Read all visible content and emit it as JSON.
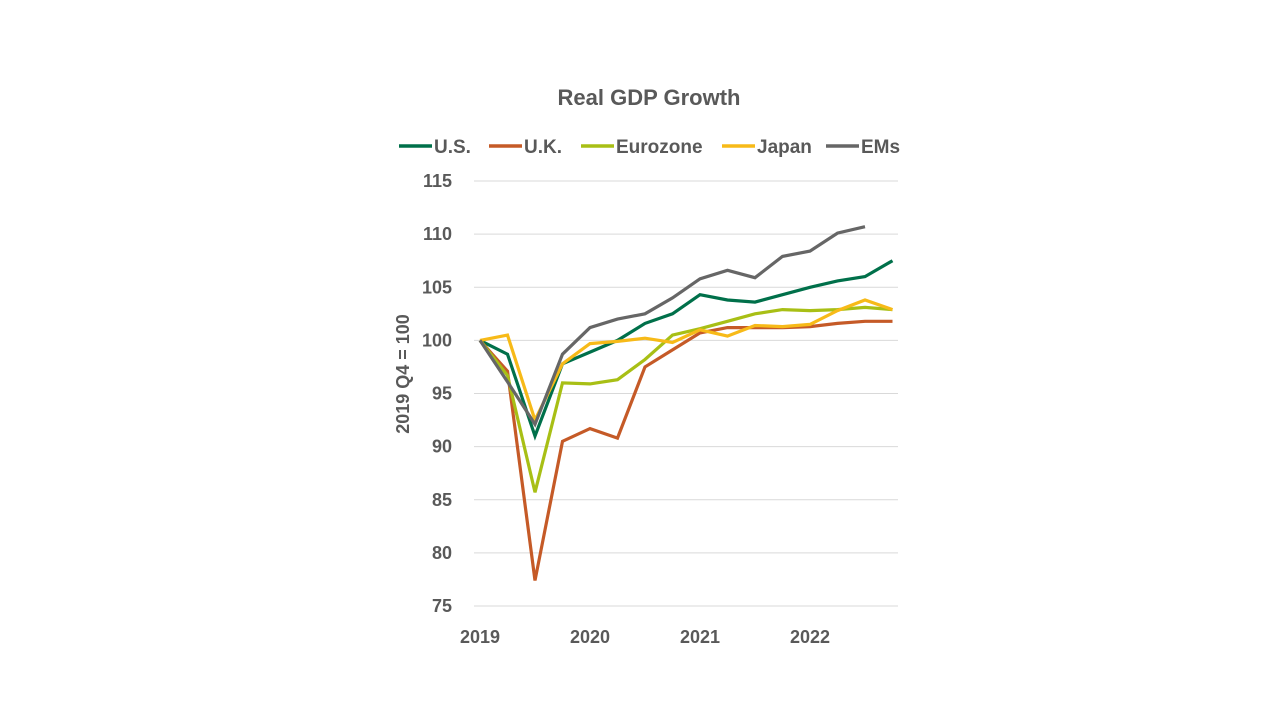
{
  "chart_data": {
    "type": "line",
    "title": "Real GDP Growth",
    "xlabel": "",
    "ylabel": "2019 Q4 = 100",
    "ylim": [
      75,
      115
    ],
    "yticks": [
      75,
      80,
      85,
      90,
      95,
      100,
      105,
      110,
      115
    ],
    "ytick_labels": [
      "75",
      "80",
      "85",
      "90",
      "95",
      "100",
      "105",
      "110",
      "115"
    ],
    "xtick_labels": [
      "2019",
      "2020",
      "2021",
      "2022"
    ],
    "xtick_positions": [
      0,
      4,
      8,
      12
    ],
    "x_count": 16,
    "grid": true,
    "legend_position": "top",
    "series": [
      {
        "name": "U.S.",
        "color": "#00704A",
        "values": [
          100,
          98.7,
          91.0,
          97.8,
          98.9,
          100.0,
          101.6,
          102.5,
          104.3,
          103.8,
          103.6,
          104.3,
          105.0,
          105.6,
          106.0,
          107.5
        ]
      },
      {
        "name": "U.K.",
        "color": "#C55A27",
        "values": [
          100,
          97.1,
          77.4,
          90.5,
          91.7,
          90.8,
          97.5,
          99.1,
          100.7,
          101.2,
          101.2,
          101.2,
          101.3,
          101.6,
          101.8,
          101.8
        ]
      },
      {
        "name": "Eurozone",
        "color": "#A8BF15",
        "values": [
          100,
          96.7,
          85.7,
          96.0,
          95.9,
          96.3,
          98.2,
          100.5,
          101.1,
          101.8,
          102.5,
          102.9,
          102.8,
          102.9,
          103.1,
          102.9
        ]
      },
      {
        "name": "Japan",
        "color": "#F7BA18",
        "values": [
          100,
          100.5,
          92.5,
          97.8,
          99.7,
          99.9,
          100.2,
          99.8,
          101.0,
          100.4,
          101.4,
          101.3,
          101.5,
          102.8,
          103.8,
          102.9
        ]
      },
      {
        "name": "EMs",
        "color": "#666666",
        "values": [
          100,
          96.1,
          92.1,
          98.7,
          101.2,
          102.0,
          102.5,
          104.0,
          105.8,
          106.6,
          105.9,
          107.9,
          108.4,
          110.1,
          110.7,
          null
        ]
      }
    ]
  }
}
